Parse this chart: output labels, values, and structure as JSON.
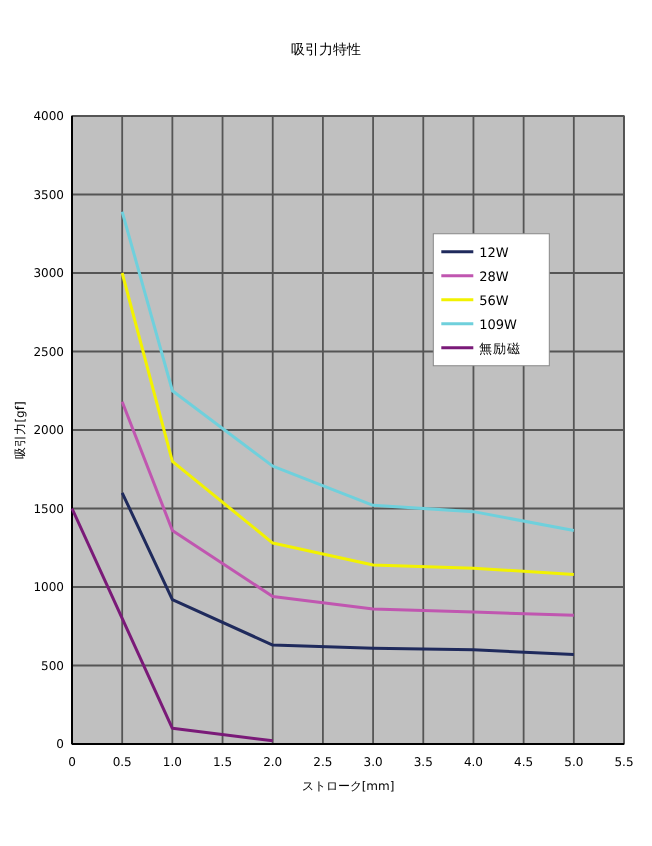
{
  "chart_data": {
    "type": "line",
    "title": "吸引力特性",
    "xlabel": "ストローク[mm]",
    "ylabel": "吸引力[gf]",
    "xlim": [
      0,
      5.5
    ],
    "xticks": [
      0,
      0.5,
      {
        "value": 1,
        "label": "1.0"
      },
      1.5,
      {
        "value": 2,
        "label": "2.0"
      },
      2.5,
      {
        "value": 3,
        "label": "3.0"
      },
      3.5,
      {
        "value": 4,
        "label": "4.0"
      },
      4.5,
      {
        "value": 5,
        "label": "5.0"
      },
      5.5
    ],
    "ylim": [
      0,
      4000
    ],
    "yticks": [
      0,
      500,
      1000,
      1500,
      2000,
      2500,
      3000,
      3500,
      4000
    ],
    "grid": true,
    "legend": "top right",
    "marker": "none",
    "series": [
      {
        "name": "12W",
        "color": "#1f2a5c",
        "x": [
          0.5,
          1,
          2,
          3,
          4,
          5
        ],
        "values": [
          1600,
          920,
          630,
          610,
          600,
          570
        ]
      },
      {
        "name": "28W",
        "color": "#c056b0",
        "x": [
          0.5,
          1,
          2,
          3,
          4,
          5
        ],
        "values": [
          2180,
          1360,
          940,
          860,
          840,
          820
        ]
      },
      {
        "name": "56W",
        "color": "#f2f200",
        "x": [
          0.5,
          1,
          2,
          3,
          4,
          5
        ],
        "values": [
          3000,
          1800,
          1280,
          1140,
          1120,
          1080
        ]
      },
      {
        "name": "109W",
        "color": "#6fd0dc",
        "x": [
          0.5,
          1,
          2,
          3,
          4,
          5
        ],
        "values": [
          3390,
          2250,
          1770,
          1520,
          1480,
          1360
        ]
      },
      {
        "name": "無励磁",
        "color": "#7a1a78",
        "x": [
          0,
          0.5,
          1,
          2
        ],
        "values": [
          1500,
          800,
          100,
          20
        ]
      }
    ]
  }
}
